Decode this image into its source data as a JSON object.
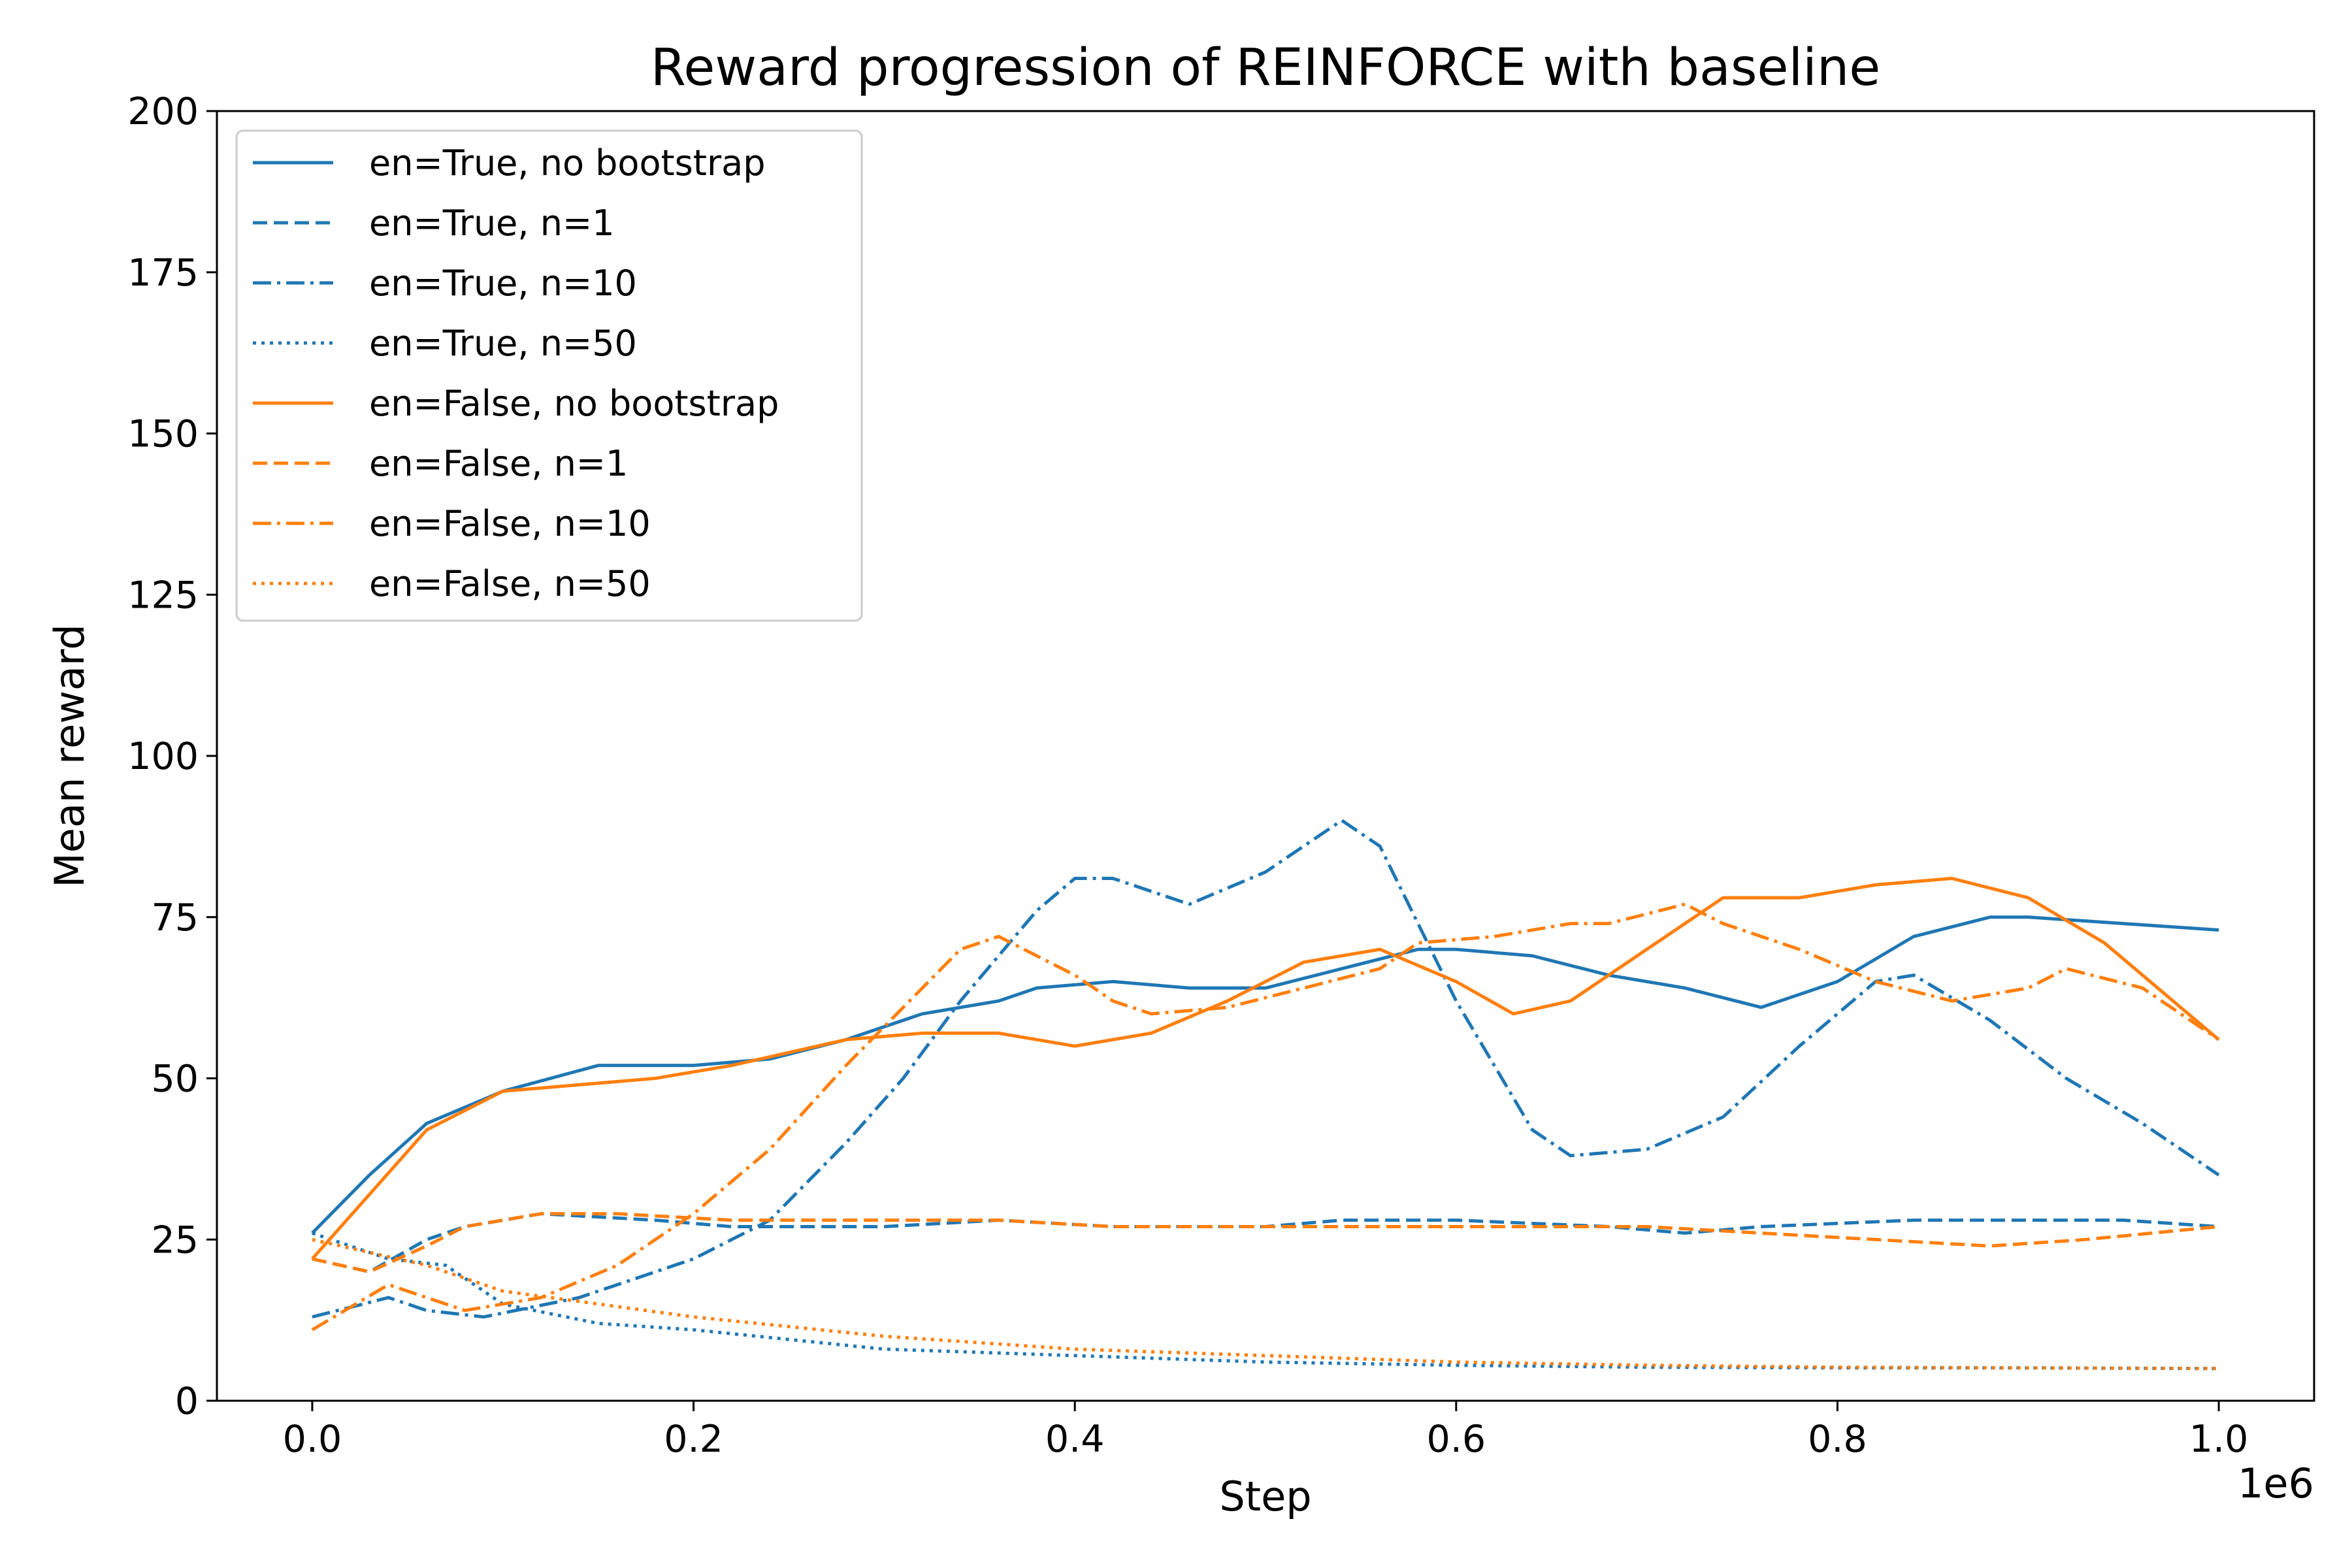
{
  "chart_data": {
    "type": "line",
    "title": "Reward progression of REINFORCE with baseline",
    "xlabel": "Step",
    "ylabel": "Mean reward",
    "x_offset_label": "1e6",
    "xlim": [
      -0.05,
      1.05
    ],
    "ylim": [
      0,
      200
    ],
    "x_ticks": [
      0.0,
      0.2,
      0.4,
      0.6,
      0.8,
      1.0
    ],
    "x_tick_labels": [
      "0.0",
      "0.2",
      "0.4",
      "0.6",
      "0.8",
      "1.0"
    ],
    "y_ticks": [
      0,
      25,
      50,
      75,
      100,
      125,
      150,
      175,
      200
    ],
    "y_tick_labels": [
      "0",
      "25",
      "50",
      "75",
      "100",
      "125",
      "150",
      "175",
      "200"
    ],
    "grid": false,
    "legend_position": "upper-left",
    "colors": {
      "blue": "#1f77b4",
      "orange": "#ff7f0e"
    },
    "series": [
      {
        "name": "en=True, no bootstrap",
        "color": "#1f77b4",
        "linestyle": "solid",
        "points": [
          [
            0,
            26
          ],
          [
            0.03,
            35
          ],
          [
            0.06,
            43
          ],
          [
            0.1,
            48
          ],
          [
            0.15,
            52
          ],
          [
            0.2,
            52
          ],
          [
            0.24,
            53
          ],
          [
            0.28,
            56
          ],
          [
            0.3,
            58
          ],
          [
            0.32,
            60
          ],
          [
            0.36,
            62
          ],
          [
            0.38,
            64
          ],
          [
            0.42,
            65
          ],
          [
            0.46,
            64
          ],
          [
            0.5,
            64
          ],
          [
            0.54,
            67
          ],
          [
            0.58,
            70
          ],
          [
            0.6,
            70
          ],
          [
            0.64,
            69
          ],
          [
            0.68,
            66
          ],
          [
            0.72,
            64
          ],
          [
            0.76,
            61
          ],
          [
            0.8,
            65
          ],
          [
            0.84,
            72
          ],
          [
            0.88,
            75
          ],
          [
            0.9,
            75
          ],
          [
            0.95,
            74
          ],
          [
            1.0,
            73
          ]
        ]
      },
      {
        "name": "en=True, n=1",
        "color": "#1f77b4",
        "linestyle": "dashed",
        "points": [
          [
            0,
            22
          ],
          [
            0.03,
            20
          ],
          [
            0.06,
            25
          ],
          [
            0.08,
            27
          ],
          [
            0.12,
            29
          ],
          [
            0.18,
            28
          ],
          [
            0.22,
            27
          ],
          [
            0.3,
            27
          ],
          [
            0.36,
            28
          ],
          [
            0.42,
            27
          ],
          [
            0.5,
            27
          ],
          [
            0.54,
            28
          ],
          [
            0.6,
            28
          ],
          [
            0.68,
            27
          ],
          [
            0.72,
            26
          ],
          [
            0.76,
            27
          ],
          [
            0.84,
            28
          ],
          [
            0.9,
            28
          ],
          [
            0.95,
            28
          ],
          [
            1.0,
            27
          ]
        ]
      },
      {
        "name": "en=True, n=10",
        "color": "#1f77b4",
        "linestyle": "dashdot",
        "points": [
          [
            0,
            13
          ],
          [
            0.04,
            16
          ],
          [
            0.06,
            14
          ],
          [
            0.09,
            13
          ],
          [
            0.14,
            16
          ],
          [
            0.2,
            22
          ],
          [
            0.24,
            28
          ],
          [
            0.28,
            40
          ],
          [
            0.31,
            50
          ],
          [
            0.34,
            62
          ],
          [
            0.38,
            76
          ],
          [
            0.4,
            81
          ],
          [
            0.42,
            81
          ],
          [
            0.46,
            77
          ],
          [
            0.5,
            82
          ],
          [
            0.54,
            90
          ],
          [
            0.56,
            86
          ],
          [
            0.6,
            62
          ],
          [
            0.64,
            42
          ],
          [
            0.66,
            38
          ],
          [
            0.7,
            39
          ],
          [
            0.74,
            44
          ],
          [
            0.78,
            55
          ],
          [
            0.82,
            65
          ],
          [
            0.84,
            66
          ],
          [
            0.88,
            59
          ],
          [
            0.92,
            50
          ],
          [
            0.96,
            43
          ],
          [
            1.0,
            35
          ]
        ]
      },
      {
        "name": "en=True, n=50",
        "color": "#1f77b4",
        "linestyle": "dotted",
        "points": [
          [
            0,
            26
          ],
          [
            0.04,
            22
          ],
          [
            0.07,
            21
          ],
          [
            0.1,
            15
          ],
          [
            0.15,
            12
          ],
          [
            0.2,
            11
          ],
          [
            0.3,
            8
          ],
          [
            0.4,
            7
          ],
          [
            0.5,
            6
          ],
          [
            0.6,
            5.5
          ],
          [
            0.7,
            5.2
          ],
          [
            0.8,
            5.1
          ],
          [
            0.9,
            5.1
          ],
          [
            1.0,
            5
          ]
        ]
      },
      {
        "name": "en=False, no bootstrap",
        "color": "#ff7f0e",
        "linestyle": "solid",
        "points": [
          [
            0,
            22
          ],
          [
            0.03,
            32
          ],
          [
            0.06,
            42
          ],
          [
            0.1,
            48
          ],
          [
            0.14,
            49
          ],
          [
            0.18,
            50
          ],
          [
            0.22,
            52
          ],
          [
            0.28,
            56
          ],
          [
            0.32,
            57
          ],
          [
            0.36,
            57
          ],
          [
            0.4,
            55
          ],
          [
            0.44,
            57
          ],
          [
            0.48,
            62
          ],
          [
            0.52,
            68
          ],
          [
            0.56,
            70
          ],
          [
            0.6,
            65
          ],
          [
            0.63,
            60
          ],
          [
            0.66,
            62
          ],
          [
            0.7,
            70
          ],
          [
            0.74,
            78
          ],
          [
            0.78,
            78
          ],
          [
            0.82,
            80
          ],
          [
            0.86,
            81
          ],
          [
            0.9,
            78
          ],
          [
            0.94,
            71
          ],
          [
            1.0,
            56
          ]
        ]
      },
      {
        "name": "en=False, n=1",
        "color": "#ff7f0e",
        "linestyle": "dashed",
        "points": [
          [
            0,
            22
          ],
          [
            0.03,
            20
          ],
          [
            0.06,
            24
          ],
          [
            0.08,
            27
          ],
          [
            0.12,
            29
          ],
          [
            0.16,
            29
          ],
          [
            0.22,
            28
          ],
          [
            0.3,
            28
          ],
          [
            0.36,
            28
          ],
          [
            0.42,
            27
          ],
          [
            0.5,
            27
          ],
          [
            0.56,
            27
          ],
          [
            0.62,
            27
          ],
          [
            0.7,
            27
          ],
          [
            0.76,
            26
          ],
          [
            0.82,
            25
          ],
          [
            0.88,
            24
          ],
          [
            0.93,
            25
          ],
          [
            1.0,
            27
          ]
        ]
      },
      {
        "name": "en=False, n=10",
        "color": "#ff7f0e",
        "linestyle": "dashdot",
        "points": [
          [
            0,
            11
          ],
          [
            0.04,
            18
          ],
          [
            0.08,
            14
          ],
          [
            0.12,
            16
          ],
          [
            0.16,
            21
          ],
          [
            0.2,
            29
          ],
          [
            0.24,
            39
          ],
          [
            0.28,
            52
          ],
          [
            0.31,
            61
          ],
          [
            0.34,
            70
          ],
          [
            0.36,
            72
          ],
          [
            0.4,
            66
          ],
          [
            0.42,
            62
          ],
          [
            0.44,
            60
          ],
          [
            0.48,
            61
          ],
          [
            0.52,
            64
          ],
          [
            0.56,
            67
          ],
          [
            0.58,
            71
          ],
          [
            0.62,
            72
          ],
          [
            0.66,
            74
          ],
          [
            0.68,
            74
          ],
          [
            0.72,
            77
          ],
          [
            0.74,
            74
          ],
          [
            0.78,
            70
          ],
          [
            0.82,
            65
          ],
          [
            0.86,
            62
          ],
          [
            0.9,
            64
          ],
          [
            0.92,
            67
          ],
          [
            0.96,
            64
          ],
          [
            1.0,
            56
          ]
        ]
      },
      {
        "name": "en=False, n=50",
        "color": "#ff7f0e",
        "linestyle": "dotted",
        "points": [
          [
            0,
            25
          ],
          [
            0.06,
            21
          ],
          [
            0.1,
            17
          ],
          [
            0.2,
            13
          ],
          [
            0.3,
            10
          ],
          [
            0.4,
            8
          ],
          [
            0.5,
            7
          ],
          [
            0.6,
            6
          ],
          [
            0.7,
            5.5
          ],
          [
            0.8,
            5.2
          ],
          [
            0.9,
            5.1
          ],
          [
            1.0,
            5
          ]
        ]
      }
    ]
  }
}
